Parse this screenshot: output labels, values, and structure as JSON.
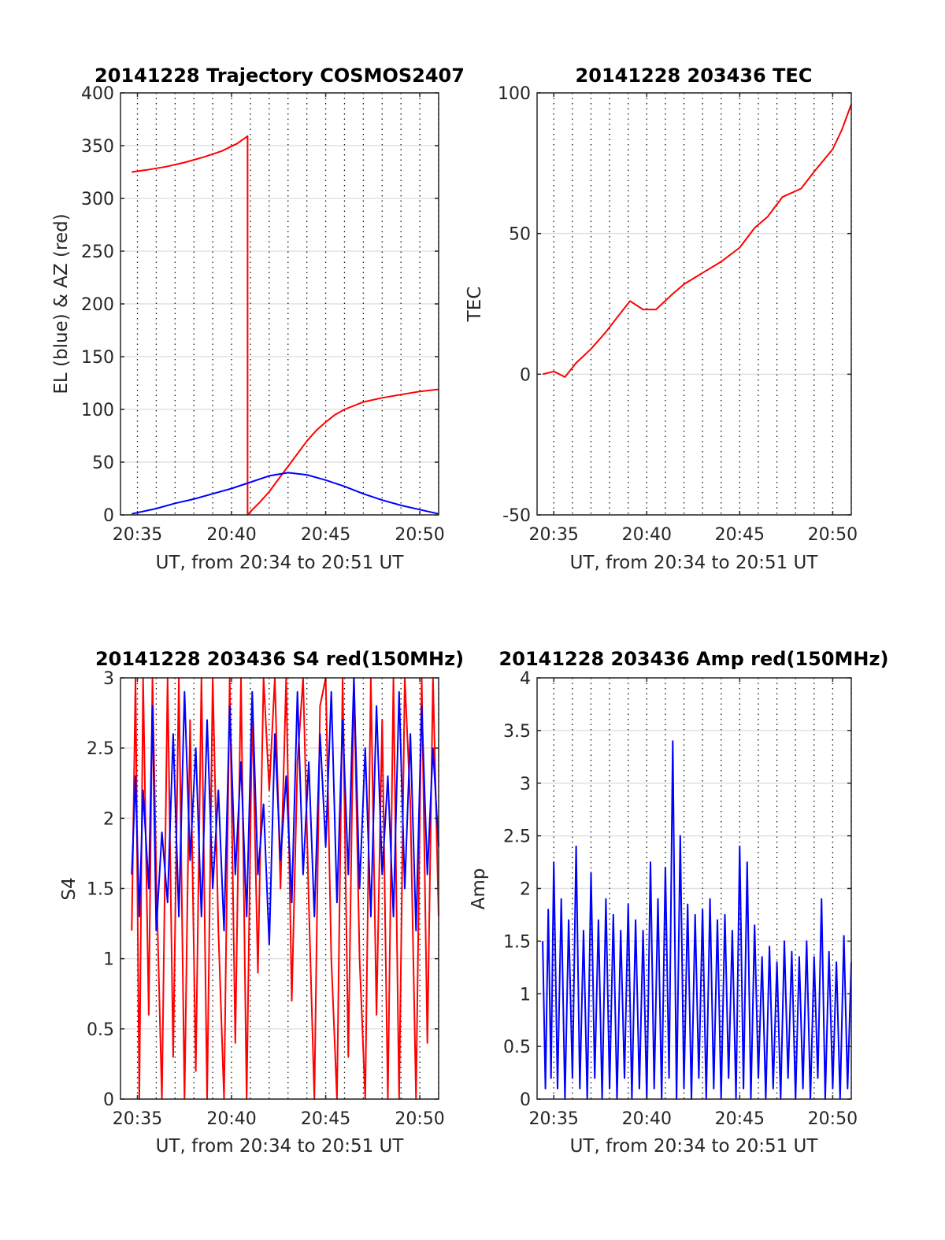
{
  "chart_data": [
    {
      "id": "trajectory",
      "type": "line",
      "title": "20141228 Trajectory COSMOS2407",
      "xlabel": "UT, from 20:34 to 20:51 UT",
      "ylabel": "EL (blue) & AZ (red)",
      "x_unit": "minutes after 20:00 UT",
      "xlim": [
        34.1,
        51.0
      ],
      "ylim": [
        0,
        400
      ],
      "xticks": [
        35,
        40,
        45,
        50
      ],
      "xtick_labels": [
        "20:35",
        "20:40",
        "20:45",
        "20:50"
      ],
      "yticks": [
        0,
        50,
        100,
        150,
        200,
        250,
        300,
        350,
        400
      ],
      "ytick_labels": [
        "0",
        "50",
        "100",
        "150",
        "200",
        "250",
        "300",
        "350",
        "400"
      ],
      "grid": true,
      "series": [
        {
          "color": "#ff0000",
          "x": [
            34.7,
            35.5,
            36.5,
            37.5,
            38.5,
            39.5,
            40.3,
            40.85,
            40.85,
            41.0,
            41.5,
            42.0,
            42.5,
            43.0,
            43.5,
            44.0,
            44.5,
            45.0,
            45.5,
            46.0,
            47.0,
            48.0,
            49.0,
            50.0,
            51.0
          ],
          "y": [
            325,
            327,
            330,
            334,
            339,
            345,
            352,
            359,
            0,
            3,
            12,
            22,
            34,
            46,
            58,
            70,
            80,
            88,
            95,
            100,
            107,
            111,
            114,
            117,
            119
          ]
        },
        {
          "color": "#0000ff",
          "x": [
            34.7,
            36,
            37,
            38,
            39,
            40,
            41,
            42,
            43,
            44,
            45,
            46,
            47,
            48,
            49,
            50,
            51
          ],
          "y": [
            1,
            6,
            11,
            15,
            20,
            25,
            31,
            37,
            40,
            38,
            33,
            27,
            20,
            14,
            9,
            5,
            1
          ]
        }
      ]
    },
    {
      "id": "tec",
      "type": "line",
      "title": "20141228 203436 TEC",
      "xlabel": "UT, from 20:34 to 20:51 UT",
      "ylabel": "TEC",
      "x_unit": "minutes after 20:00 UT",
      "xlim": [
        34.1,
        51.0
      ],
      "ylim": [
        -50,
        100
      ],
      "xticks": [
        35,
        40,
        45,
        50
      ],
      "xtick_labels": [
        "20:35",
        "20:40",
        "20:45",
        "20:50"
      ],
      "yticks": [
        -50,
        0,
        50,
        100
      ],
      "ytick_labels": [
        "-50",
        "0",
        "50",
        "100"
      ],
      "grid": true,
      "series": [
        {
          "color": "#ff0000",
          "x": [
            34.4,
            35.0,
            35.6,
            36.2,
            37.0,
            37.8,
            38.5,
            39.1,
            39.8,
            40.5,
            41.3,
            42.0,
            43.0,
            44.0,
            45.0,
            45.8,
            46.5,
            47.3,
            48.3,
            49.0,
            50.0,
            50.5,
            51.0
          ],
          "y": [
            0,
            1,
            -1,
            4,
            9,
            15,
            21,
            26,
            23,
            23,
            28,
            32,
            36,
            40,
            45,
            52,
            56,
            63,
            66,
            72,
            80,
            87,
            96
          ]
        }
      ]
    },
    {
      "id": "s4",
      "type": "line",
      "title": "20141228 203436 S4 red(150MHz)",
      "xlabel": "UT, from 20:34 to 20:51 UT",
      "ylabel": "S4",
      "x_unit": "minutes after 20:00 UT",
      "xlim": [
        34.1,
        51.0
      ],
      "ylim": [
        0,
        3
      ],
      "xticks": [
        35,
        40,
        45,
        50
      ],
      "xtick_labels": [
        "20:35",
        "20:40",
        "20:45",
        "20:50"
      ],
      "yticks": [
        0,
        0.5,
        1,
        1.5,
        2,
        2.5,
        3
      ],
      "ytick_labels": [
        "0",
        "0.5",
        "1",
        "1.5",
        "2",
        "2.5",
        "3"
      ],
      "grid": true,
      "series": [
        {
          "color": "#ff0000",
          "x": [
            34.7,
            34.9,
            35.1,
            35.3,
            35.6,
            35.8,
            36.0,
            36.3,
            36.6,
            36.9,
            37.2,
            37.5,
            37.8,
            38.1,
            38.4,
            38.7,
            39.0,
            39.3,
            39.6,
            39.9,
            40.2,
            40.5,
            40.8,
            41.1,
            41.4,
            41.7,
            42.0,
            42.3,
            42.6,
            42.9,
            43.2,
            43.5,
            43.8,
            44.1,
            44.4,
            44.7,
            45.0,
            45.3,
            45.6,
            45.9,
            46.2,
            46.5,
            46.8,
            47.1,
            47.4,
            47.7,
            48.0,
            48.3,
            48.6,
            48.9,
            49.2,
            49.5,
            49.8,
            50.1,
            50.4,
            50.7,
            51.0
          ],
          "y": [
            1.2,
            3.0,
            0.0,
            3.0,
            0.6,
            3.0,
            1.6,
            0.0,
            3.0,
            0.3,
            3.0,
            0.0,
            2.7,
            0.2,
            3.0,
            0.0,
            3.0,
            1.2,
            0.0,
            3.0,
            0.4,
            3.0,
            0.0,
            2.8,
            0.9,
            3.0,
            2.2,
            3.0,
            1.5,
            3.0,
            0.7,
            2.4,
            3.0,
            1.4,
            0.0,
            2.8,
            3.0,
            1.0,
            0.0,
            3.0,
            0.3,
            3.0,
            1.0,
            0.0,
            3.0,
            0.6,
            2.7,
            0.0,
            3.0,
            0.0,
            3.0,
            2.1,
            0.0,
            3.0,
            0.4,
            3.0,
            1.3
          ]
        },
        {
          "color": "#0000ff",
          "x": [
            34.7,
            34.9,
            35.1,
            35.3,
            35.6,
            35.8,
            36.0,
            36.3,
            36.6,
            36.9,
            37.2,
            37.5,
            37.8,
            38.1,
            38.4,
            38.7,
            39.0,
            39.3,
            39.6,
            39.9,
            40.2,
            40.5,
            40.8,
            41.1,
            41.4,
            41.7,
            42.0,
            42.3,
            42.6,
            42.9,
            43.2,
            43.5,
            43.8,
            44.1,
            44.4,
            44.7,
            45.0,
            45.3,
            45.6,
            45.9,
            46.2,
            46.5,
            46.8,
            47.1,
            47.4,
            47.7,
            48.0,
            48.3,
            48.6,
            48.9,
            49.2,
            49.5,
            49.8,
            50.1,
            50.4,
            50.7,
            51.0
          ],
          "y": [
            1.6,
            2.3,
            1.3,
            2.2,
            1.5,
            2.8,
            1.2,
            1.9,
            1.4,
            2.6,
            1.3,
            2.9,
            1.7,
            2.5,
            1.3,
            2.7,
            1.5,
            2.2,
            1.2,
            2.8,
            1.6,
            2.4,
            1.3,
            2.9,
            1.6,
            2.1,
            1.1,
            2.6,
            1.7,
            2.3,
            1.4,
            2.9,
            1.6,
            2.4,
            1.3,
            2.6,
            1.8,
            2.9,
            1.4,
            2.7,
            1.6,
            3.0,
            1.5,
            2.5,
            1.3,
            2.8,
            1.6,
            2.3,
            1.3,
            2.9,
            1.5,
            2.6,
            1.2,
            2.8,
            1.6,
            2.5,
            1.8
          ]
        }
      ]
    },
    {
      "id": "amp",
      "type": "line",
      "title": "20141228 203436 Amp red(150MHz)",
      "xlabel": "UT, from 20:34 to 20:51 UT",
      "ylabel": "Amp",
      "x_unit": "minutes after 20:00 UT",
      "xlim": [
        34.1,
        51.0
      ],
      "ylim": [
        0,
        4
      ],
      "xticks": [
        35,
        40,
        45,
        50
      ],
      "xtick_labels": [
        "20:35",
        "20:40",
        "20:45",
        "20:50"
      ],
      "yticks": [
        0,
        0.5,
        1,
        1.5,
        2,
        2.5,
        3,
        3.5,
        4
      ],
      "ytick_labels": [
        "0",
        "0.5",
        "1",
        "1.5",
        "2",
        "2.5",
        "3",
        "3.5",
        "4"
      ],
      "grid": true,
      "series": [
        {
          "color": "#0000ff",
          "x": [
            34.4,
            34.55,
            34.7,
            34.85,
            35.0,
            35.2,
            35.4,
            35.6,
            35.8,
            36.0,
            36.2,
            36.4,
            36.6,
            36.8,
            37.0,
            37.2,
            37.4,
            37.6,
            37.8,
            38.0,
            38.2,
            38.4,
            38.6,
            38.8,
            39.0,
            39.2,
            39.4,
            39.6,
            39.8,
            40.0,
            40.2,
            40.4,
            40.6,
            40.8,
            41.0,
            41.2,
            41.4,
            41.6,
            41.8,
            42.0,
            42.2,
            42.4,
            42.6,
            42.8,
            43.0,
            43.2,
            43.4,
            43.6,
            43.8,
            44.0,
            44.2,
            44.4,
            44.6,
            44.8,
            45.0,
            45.2,
            45.4,
            45.6,
            45.8,
            46.0,
            46.2,
            46.4,
            46.6,
            46.8,
            47.0,
            47.2,
            47.4,
            47.6,
            47.8,
            48.0,
            48.2,
            48.4,
            48.6,
            48.8,
            49.0,
            49.2,
            49.4,
            49.6,
            49.8,
            50.0,
            50.2,
            50.4,
            50.6,
            50.8,
            51.0
          ],
          "y": [
            1.5,
            0.1,
            1.8,
            0.2,
            2.25,
            0.1,
            1.9,
            0.0,
            1.7,
            0.2,
            2.4,
            0.1,
            1.6,
            0.0,
            2.15,
            0.2,
            1.7,
            0.0,
            1.9,
            0.1,
            1.75,
            0.0,
            1.6,
            0.2,
            1.85,
            0.0,
            1.7,
            0.1,
            1.6,
            0.0,
            2.25,
            0.1,
            1.9,
            0.0,
            2.2,
            0.2,
            3.4,
            0.0,
            2.5,
            0.1,
            1.85,
            0.0,
            1.75,
            0.2,
            1.8,
            0.0,
            1.9,
            0.1,
            1.7,
            0.0,
            1.75,
            0.2,
            1.6,
            0.0,
            2.4,
            0.1,
            2.25,
            0.0,
            1.65,
            0.2,
            1.35,
            0.0,
            1.45,
            0.1,
            1.3,
            0.0,
            1.5,
            0.2,
            1.4,
            0.0,
            1.35,
            0.1,
            1.5,
            0.0,
            1.35,
            0.2,
            1.9,
            0.0,
            1.4,
            0.1,
            1.3,
            0.0,
            1.55,
            0.1,
            1.3
          ]
        }
      ]
    }
  ]
}
